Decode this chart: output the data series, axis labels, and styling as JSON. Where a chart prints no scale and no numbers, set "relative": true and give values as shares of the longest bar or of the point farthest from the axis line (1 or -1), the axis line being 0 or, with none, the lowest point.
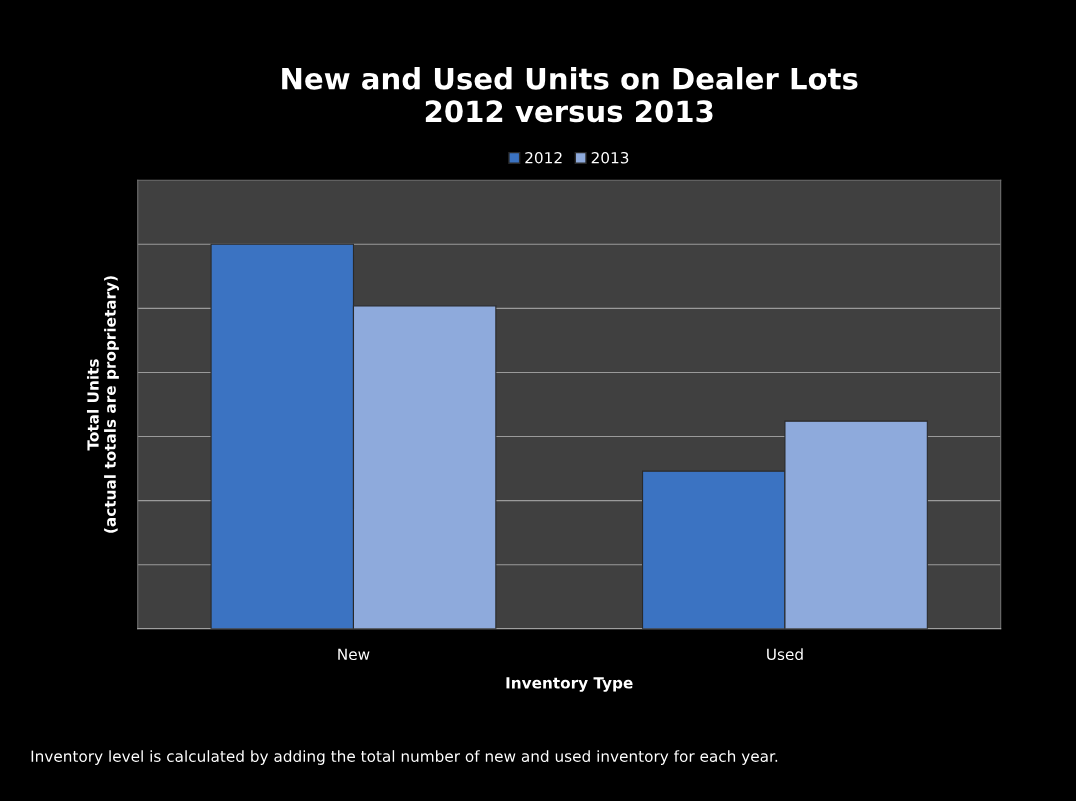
{
  "chart_data": {
    "type": "bar",
    "title": "New and Used Units on Dealer Lots\n2012 versus 2013",
    "xlabel": "Inventory Type",
    "ylabel": "Total Units\n(actual totals are proprietary)",
    "categories": [
      "New",
      "Used"
    ],
    "series": [
      {
        "name": "2012",
        "color": "#3b73c2",
        "values": [
          1,
          0.41
        ]
      },
      {
        "name": "2013",
        "color": "#8eaadc",
        "values": [
          0.84,
          0.54
        ]
      }
    ],
    "relative": true,
    "grid": "y",
    "legend": "top",
    "annotations": [
      "Inventory level is calculated by adding the total number of new and used inventory for each year."
    ]
  }
}
